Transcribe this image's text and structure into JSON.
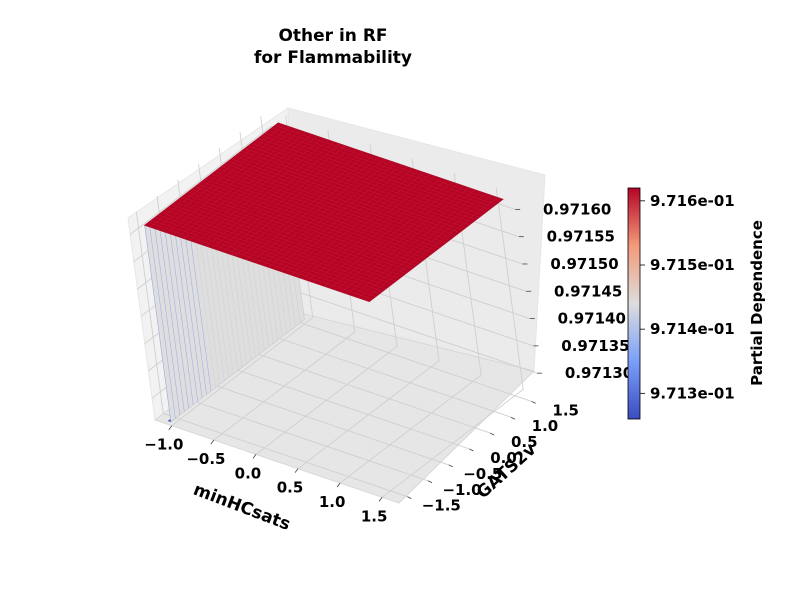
{
  "chart_data": {
    "type": "surface3d",
    "title_lines": [
      "Other in RF",
      "for Flammability"
    ],
    "xlabel": "minHCsats",
    "ylabel": "GATS2v",
    "zlabel": "",
    "x_ticks": [
      "−1.0",
      "−0.5",
      "0.0",
      "0.5",
      "1.0",
      "1.5"
    ],
    "x_tick_values": [
      -1.0,
      -0.5,
      0.0,
      0.5,
      1.0,
      1.5
    ],
    "y_ticks": [
      "−1.5",
      "−1.0",
      "−0.5",
      "0.0",
      "0.5",
      "1.0",
      "1.5"
    ],
    "y_tick_values": [
      -1.5,
      -1.0,
      -0.5,
      0.0,
      0.5,
      1.0,
      1.5
    ],
    "z_ticks": [
      "0.97130",
      "0.97135",
      "0.97140",
      "0.97145",
      "0.97150",
      "0.97155",
      "0.97160"
    ],
    "z_tick_values": [
      0.9713,
      0.97135,
      0.9714,
      0.97145,
      0.9715,
      0.97155,
      0.9716
    ],
    "x_range": [
      -1.2,
      1.7
    ],
    "y_range": [
      -1.7,
      1.7
    ],
    "z_range": [
      0.97126,
      0.97163
    ],
    "surface": {
      "description_low_region": "low plateau at minHCsats below about -1.05",
      "step_x": -1.05,
      "low_value": 0.97126,
      "high_value": 0.97162
    },
    "colorbar": {
      "label": "Partial Dependence",
      "ticks": [
        "9.713e-01",
        "9.714e-01",
        "9.715e-01",
        "9.716e-01"
      ],
      "tick_values": [
        0.9713,
        0.9714,
        0.9715,
        0.9716
      ],
      "range": [
        0.97126,
        0.97162
      ],
      "colormap": "coolwarm",
      "colors": {
        "low": "#3b4cc0",
        "mid": "#dddddd",
        "high": "#b40426"
      }
    },
    "grid": true
  }
}
